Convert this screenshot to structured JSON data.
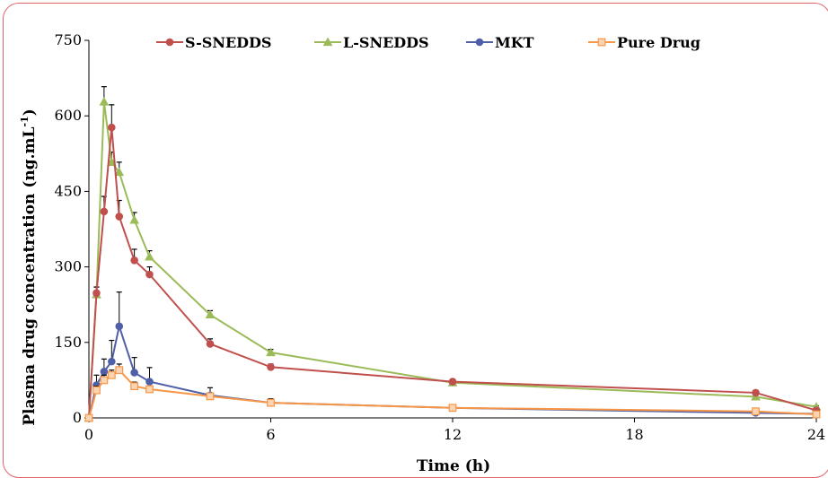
{
  "chart_data": {
    "type": "line",
    "title": "",
    "xlabel": "Time (h)",
    "ylabel": "Plasma drug concentration (ng.mL",
    "ylabel_sup": "-1",
    "ylabel_close": ")",
    "xlim": [
      0,
      24
    ],
    "ylim": [
      0,
      750
    ],
    "x_ticks": [
      "0",
      "6",
      "12",
      "18",
      "24"
    ],
    "y_ticks": [
      "0",
      "150",
      "300",
      "450",
      "600",
      "750"
    ],
    "grid": false,
    "legend_position": "top",
    "series": [
      {
        "name": "S-SNEDDS",
        "color": "#c0504d",
        "marker": "circle",
        "points": [
          [
            0,
            0
          ],
          [
            0.25,
            248
          ],
          [
            0.5,
            410
          ],
          [
            0.75,
            577
          ],
          [
            1,
            400
          ],
          [
            1.5,
            313
          ],
          [
            2,
            285
          ],
          [
            4,
            147
          ],
          [
            6,
            101
          ],
          [
            12,
            72
          ],
          [
            22,
            50
          ],
          [
            24,
            15
          ]
        ],
        "errors": [
          0,
          12,
          30,
          45,
          32,
          22,
          15,
          10,
          6,
          5,
          5,
          3
        ]
      },
      {
        "name": "L-SNEDDS",
        "color": "#9bbb59",
        "marker": "triangle",
        "points": [
          [
            0,
            0
          ],
          [
            0.25,
            245
          ],
          [
            0.5,
            628
          ],
          [
            0.75,
            508
          ],
          [
            1,
            488
          ],
          [
            1.5,
            393
          ],
          [
            2,
            320
          ],
          [
            4,
            205
          ],
          [
            6,
            130
          ],
          [
            12,
            70
          ],
          [
            22,
            42
          ],
          [
            24,
            22
          ]
        ],
        "errors": [
          0,
          15,
          30,
          20,
          20,
          15,
          12,
          8,
          6,
          4,
          3,
          2
        ]
      },
      {
        "name": "MKT",
        "color": "#4f5fa8",
        "marker": "circle",
        "points": [
          [
            0,
            0
          ],
          [
            0.25,
            65
          ],
          [
            0.5,
            92
          ],
          [
            0.75,
            112
          ],
          [
            1,
            182
          ],
          [
            1.5,
            90
          ],
          [
            2,
            72
          ],
          [
            4,
            45
          ],
          [
            6,
            30
          ],
          [
            12,
            20
          ],
          [
            22,
            10
          ],
          [
            24,
            8
          ]
        ],
        "errors": [
          0,
          20,
          25,
          42,
          68,
          30,
          28,
          15,
          8,
          4,
          3,
          2
        ]
      },
      {
        "name": "Pure Drug",
        "color": "#f79646",
        "marker": "square",
        "points": [
          [
            0,
            0
          ],
          [
            0.25,
            55
          ],
          [
            0.5,
            75
          ],
          [
            0.75,
            85
          ],
          [
            1,
            95
          ],
          [
            1.5,
            63
          ],
          [
            2,
            57
          ],
          [
            4,
            43
          ],
          [
            6,
            30
          ],
          [
            12,
            20
          ],
          [
            22,
            13
          ],
          [
            24,
            7
          ]
        ],
        "errors": [
          0,
          8,
          10,
          10,
          12,
          8,
          6,
          5,
          4,
          3,
          2,
          2
        ]
      }
    ]
  }
}
